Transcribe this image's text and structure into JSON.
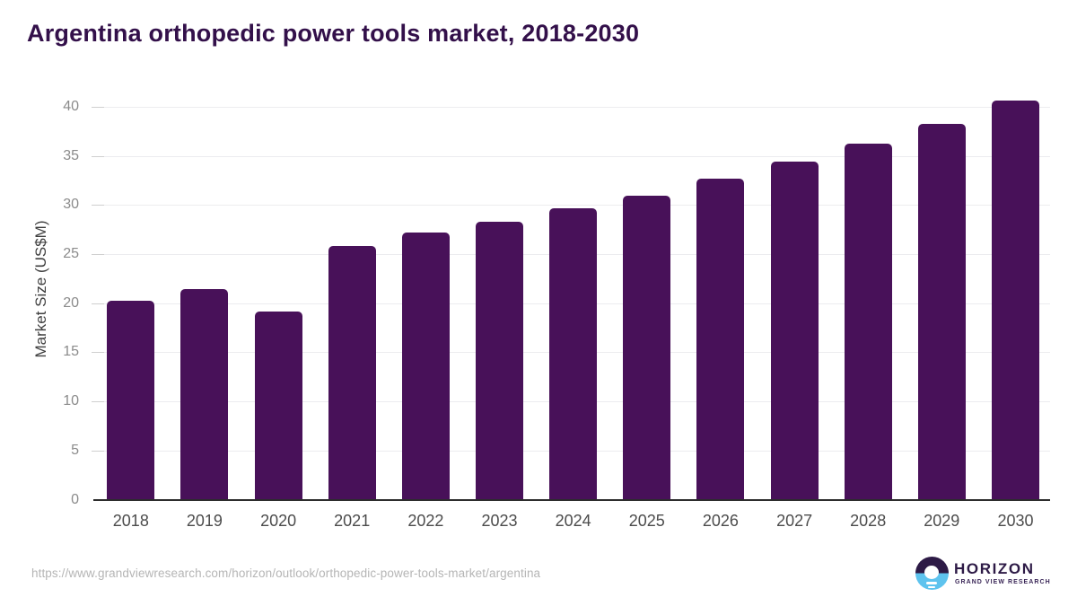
{
  "title": "Argentina orthopedic power tools market, 2018-2030",
  "chart_data": {
    "type": "bar",
    "title": "Argentina orthopedic power tools market, 2018-2030",
    "categories": [
      "2018",
      "2019",
      "2020",
      "2021",
      "2022",
      "2023",
      "2024",
      "2025",
      "2026",
      "2027",
      "2028",
      "2029",
      "2030"
    ],
    "values": [
      20.3,
      21.5,
      19.2,
      25.9,
      27.2,
      28.3,
      29.7,
      31.0,
      32.7,
      34.5,
      36.3,
      38.3,
      40.7
    ],
    "xlabel": "",
    "ylabel": "Market Size (US$M)",
    "ylim": [
      0,
      40
    ],
    "yticks": [
      0,
      5,
      10,
      15,
      20,
      25,
      30,
      35,
      40
    ],
    "grid": true,
    "legend": "none",
    "bar_color": "#481159"
  },
  "colors": {
    "bar": "#481159",
    "title": "#33104a",
    "logo_purple": "#2d1a46",
    "logo_blue": "#5ec3ee",
    "gridline": "#ececef",
    "axis_line": "#2d2d2d"
  },
  "footer": {
    "source_url": "https://www.grandviewresearch.com/horizon/outlook/orthopedic-power-tools-market/argentina",
    "logo_brand": "HORIZON",
    "logo_tagline": "GRAND VIEW RESEARCH"
  }
}
